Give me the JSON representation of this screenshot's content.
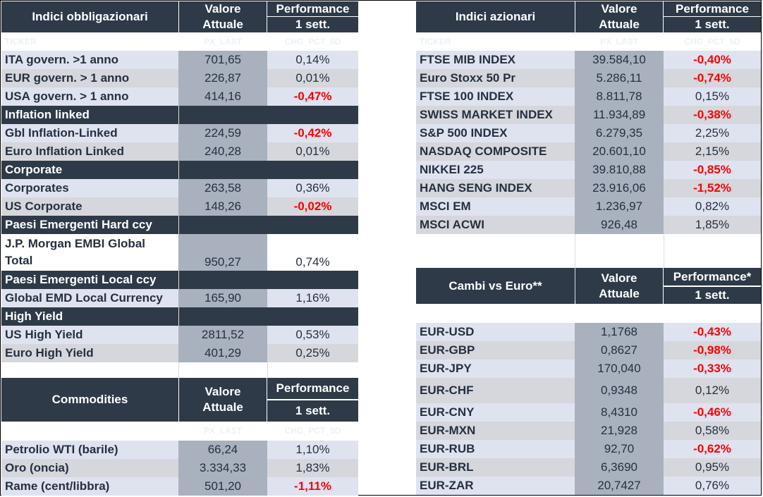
{
  "bond": {
    "title": "Indici obbligazionari",
    "value_header": [
      "Valore",
      "Attuale"
    ],
    "perf_header": "Performance",
    "perf_sub": "1 sett.",
    "ghost": [
      "TICKER",
      "PX_LAST",
      "CHG_PCT_5D"
    ],
    "rows": [
      {
        "type": "row",
        "name": "ITA govern. >1 anno",
        "value": "701,65",
        "perf": "0,14%",
        "neg": false
      },
      {
        "type": "row",
        "name": "EUR govern. > 1 anno",
        "value": "226,87",
        "perf": "0,01%",
        "neg": false
      },
      {
        "type": "row",
        "name": "USA govern. > 1 anno",
        "value": "414,16",
        "perf": "-0,47%",
        "neg": true
      },
      {
        "type": "section",
        "name": "Inflation linked"
      },
      {
        "type": "row",
        "name": "Gbl Inflation-Linked",
        "value": "224,59",
        "perf": "-0,42%",
        "neg": true
      },
      {
        "type": "row",
        "name": "Euro Inflation Linked",
        "value": "240,28",
        "perf": "0,01%",
        "neg": false
      },
      {
        "type": "section",
        "name": "Corporate"
      },
      {
        "type": "row",
        "name": "Corporates",
        "value": "263,58",
        "perf": "0,36%",
        "neg": false
      },
      {
        "type": "row",
        "name": "US Corporate",
        "value": "148,26",
        "perf": "-0,02%",
        "neg": true
      },
      {
        "type": "section",
        "name": "Paesi Emergenti Hard ccy"
      },
      {
        "type": "tall",
        "name": [
          "J.P. Morgan EMBI Global",
          "Total"
        ],
        "value": "950,27",
        "perf": "0,74%",
        "neg": false
      },
      {
        "type": "section",
        "name": "Paesi Emergenti Local ccy"
      },
      {
        "type": "row",
        "name": "Global EMD Local Currency",
        "value": "165,90",
        "perf": "1,16%",
        "neg": false
      },
      {
        "type": "section",
        "name": "High Yield"
      },
      {
        "type": "row",
        "name": "US High Yield",
        "value": "2811,52",
        "perf": "0,53%",
        "neg": false
      },
      {
        "type": "row",
        "name": "Euro High Yield",
        "value": "401,29",
        "perf": "0,25%",
        "neg": false
      }
    ]
  },
  "commod": {
    "title": "Commodities",
    "value_header": [
      "Valore",
      "Attuale"
    ],
    "perf_header": "Performance",
    "perf_sub": "1 sett.",
    "ghost": [
      "PX_LAST",
      "CHG_PCT_5D"
    ],
    "rows": [
      {
        "name": "Petrolio WTI (barile)",
        "value": "66,24",
        "perf": "1,10%",
        "neg": false
      },
      {
        "name": "Oro (oncia)",
        "value": "3.334,33",
        "perf": "1,83%",
        "neg": false
      },
      {
        "name": "Rame (cent/libbra)",
        "value": "501,20",
        "perf": "-1,11%",
        "neg": true
      }
    ]
  },
  "equity": {
    "title": "Indici azionari",
    "value_header": [
      "Valore",
      "Attuale"
    ],
    "perf_header": "Performance",
    "perf_sub": "1 sett.",
    "ghost": [
      "TICKER",
      "PX_LAST",
      "CHG_PCT_5D"
    ],
    "rows": [
      {
        "name": "FTSE MIB INDEX",
        "value": "39.584,10",
        "perf": "-0,40%",
        "neg": true
      },
      {
        "name": "Euro Stoxx 50 Pr",
        "value": "5.286,11",
        "perf": "-0,74%",
        "neg": true
      },
      {
        "name": "FTSE 100 INDEX",
        "value": "8.811,78",
        "perf": "0,15%",
        "neg": false
      },
      {
        "name": "SWISS MARKET INDEX",
        "value": "11.934,89",
        "perf": "-0,38%",
        "neg": true
      },
      {
        "name": "S&P 500 INDEX",
        "value": "6.279,35",
        "perf": "2,25%",
        "neg": false
      },
      {
        "name": "NASDAQ COMPOSITE",
        "value": "20.601,10",
        "perf": "2,15%",
        "neg": false
      },
      {
        "name": "NIKKEI 225",
        "value": "39.810,88",
        "perf": "-0,85%",
        "neg": true
      },
      {
        "name": "HANG SENG INDEX",
        "value": "23.916,06",
        "perf": "-1,52%",
        "neg": true
      },
      {
        "name": "MSCI EM",
        "value": "1.236,97",
        "perf": "0,82%",
        "neg": false
      },
      {
        "name": "MSCI ACWI",
        "value": "926,48",
        "perf": "1,85%",
        "neg": false
      }
    ]
  },
  "fx": {
    "title": "Cambi vs Euro**",
    "value_header": [
      "Valore",
      "Attuale"
    ],
    "perf_header": "Performance*",
    "perf_sub": "1 sett.",
    "rows": [
      {
        "name": "EUR-USD",
        "value": "1,1768",
        "perf": "-0,43%",
        "neg": true
      },
      {
        "name": "EUR-GBP",
        "value": "0,8627",
        "perf": "-0,98%",
        "neg": true
      },
      {
        "name": "EUR-JPY",
        "value": "170,040",
        "perf": "-0,33%",
        "neg": true
      },
      {
        "name": "EUR-CHF",
        "value": "0,9348",
        "perf": "0,12%",
        "neg": false
      },
      {
        "name": "EUR-CNY",
        "value": "8,4310",
        "perf": "-0,46%",
        "neg": true
      },
      {
        "name": "EUR-MXN",
        "value": "21,928",
        "perf": "0,58%",
        "neg": false
      },
      {
        "name": "EUR-RUB",
        "value": "92,70",
        "perf": "-0,62%",
        "neg": true
      },
      {
        "name": "EUR-BRL",
        "value": "6,3690",
        "perf": "0,95%",
        "neg": false
      },
      {
        "name": "EUR-ZAR",
        "value": "20,7427",
        "perf": "0,76%",
        "neg": false
      }
    ]
  }
}
